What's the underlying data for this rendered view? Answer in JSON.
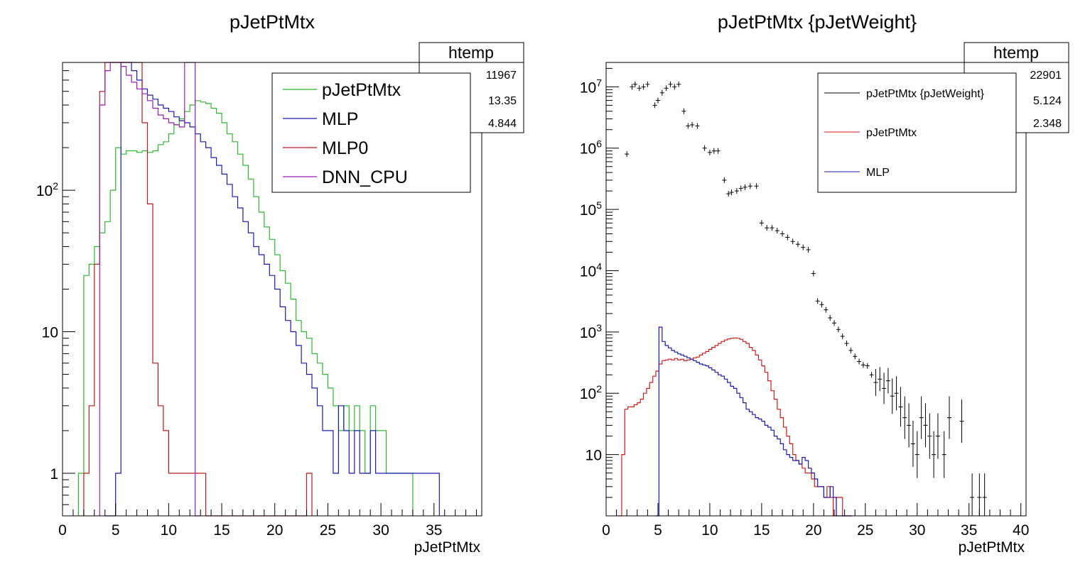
{
  "chart_data": [
    {
      "type": "histogram",
      "title": "pJetPtMtx",
      "xlabel": "pJetPtMtx",
      "ylabel": "",
      "xlim": [
        0,
        39.5
      ],
      "ylim": [
        0.5,
        800
      ],
      "log_y": true,
      "bin_width": 0.5,
      "x_ticks": [
        "0",
        "5",
        "10",
        "15",
        "20",
        "25",
        "30",
        "35"
      ],
      "y_ticks": [
        "1",
        "10",
        "10^2"
      ],
      "stats_box": {
        "title": "htemp",
        "values": [
          "11967",
          "13.35",
          "4.844"
        ]
      },
      "legend_position": "top-right",
      "series": [
        {
          "name": "pJetPtMtx",
          "color": "#2eb82e",
          "x_start": 1.5,
          "values": [
            1,
            25,
            30,
            40,
            50,
            60,
            100,
            200,
            180,
            190,
            190,
            185,
            190,
            185,
            190,
            210,
            220,
            250,
            290,
            320,
            360,
            400,
            430,
            420,
            410,
            380,
            350,
            300,
            250,
            220,
            180,
            150,
            120,
            90,
            70,
            55,
            45,
            35,
            27,
            22,
            17,
            12,
            10,
            9,
            7,
            6,
            5,
            4,
            3,
            2,
            3,
            2,
            3,
            2,
            1,
            3,
            2,
            2,
            1,
            1,
            1,
            1,
            1
          ]
        },
        {
          "name": "MLP",
          "color": "#1a1ab8",
          "x_start": 4.0,
          "values": [
            0,
            0,
            1,
            800,
            850,
            700,
            600,
            520,
            470,
            440,
            400,
            380,
            360,
            330,
            310,
            300,
            280,
            250,
            220,
            200,
            170,
            150,
            130,
            110,
            90,
            75,
            60,
            50,
            40,
            35,
            30,
            25,
            20,
            15,
            12,
            10,
            8,
            6,
            5,
            4,
            3,
            2,
            2,
            1,
            3,
            2,
            1,
            2,
            1,
            1,
            2,
            1,
            1,
            1,
            1,
            1,
            1,
            1,
            1,
            1,
            1,
            1,
            1
          ]
        },
        {
          "name": "MLP0",
          "color": "#b81a1a",
          "x_start": 2.0,
          "values": [
            1,
            3,
            30,
            500,
            800,
            800,
            800,
            800,
            800,
            800,
            800,
            300,
            80,
            6,
            3,
            2,
            1,
            1,
            1,
            1,
            1,
            1,
            1,
            0,
            0,
            0,
            0,
            0,
            0,
            0,
            0,
            0,
            0,
            0,
            0,
            0,
            0,
            0,
            0,
            0,
            0,
            0,
            1
          ]
        },
        {
          "name": "DNN_CPU",
          "color": "#9a1ab8",
          "x_start": 3.5,
          "values": [
            400,
            700,
            800,
            800,
            750,
            650,
            580,
            520,
            480,
            430,
            380,
            340,
            320,
            300,
            290,
            280,
            800,
            800,
            0
          ]
        }
      ]
    },
    {
      "type": "histogram",
      "title": "pJetPtMtx {pJetWeight}",
      "xlabel": "pJetPtMtx",
      "ylabel": "",
      "xlim": [
        0,
        40.5
      ],
      "ylim": [
        1,
        25000000
      ],
      "log_y": true,
      "bin_width": 0.3,
      "x_ticks": [
        "0",
        "5",
        "10",
        "15",
        "20",
        "25",
        "30",
        "35",
        "40"
      ],
      "y_ticks": [
        "10",
        "10^2",
        "10^3",
        "10^4",
        "10^5",
        "10^6",
        "10^7"
      ],
      "stats_box": {
        "title": "htemp",
        "values": [
          "22901",
          "5.124",
          "2.348"
        ]
      },
      "legend_position": "top-right",
      "series": [
        {
          "name": "pJetPtMtx {pJetWeight}",
          "color": "#000000",
          "style": "points",
          "points": [
            [
              2.0,
              800000
            ],
            [
              2.5,
              10000000
            ],
            [
              2.8,
              11000000
            ],
            [
              3.2,
              9500000
            ],
            [
              3.6,
              10000000
            ],
            [
              4.0,
              11000000
            ],
            [
              4.7,
              5000000
            ],
            [
              5.0,
              6000000
            ],
            [
              5.4,
              8000000
            ],
            [
              5.8,
              9500000
            ],
            [
              6.2,
              11000000
            ],
            [
              6.6,
              10000000
            ],
            [
              7.0,
              11000000
            ],
            [
              7.5,
              4000000
            ],
            [
              7.9,
              2300000
            ],
            [
              8.3,
              2400000
            ],
            [
              8.8,
              2300000
            ],
            [
              9.5,
              1000000
            ],
            [
              10.0,
              850000
            ],
            [
              10.4,
              900000
            ],
            [
              10.8,
              900000
            ],
            [
              11.4,
              300000
            ],
            [
              11.8,
              180000
            ],
            [
              12.1,
              190000
            ],
            [
              12.6,
              200000
            ],
            [
              13.0,
              220000
            ],
            [
              13.4,
              230000
            ],
            [
              13.9,
              240000
            ],
            [
              14.5,
              240000
            ],
            [
              15.0,
              60000
            ],
            [
              15.5,
              50000
            ],
            [
              16.0,
              50000
            ],
            [
              16.5,
              45000
            ],
            [
              17.0,
              40000
            ],
            [
              17.5,
              35000
            ],
            [
              18.0,
              30000
            ],
            [
              18.5,
              27000
            ],
            [
              19.0,
              24000
            ],
            [
              19.5,
              22000
            ],
            [
              20.0,
              9000
            ],
            [
              20.4,
              3200
            ],
            [
              20.8,
              2800
            ],
            [
              21.2,
              2300
            ],
            [
              21.6,
              1700
            ],
            [
              22.0,
              1400
            ],
            [
              22.4,
              1100
            ],
            [
              22.8,
              850
            ],
            [
              23.2,
              650
            ],
            [
              23.6,
              500
            ],
            [
              24.0,
              400
            ],
            [
              24.4,
              330
            ],
            [
              24.8,
              290
            ],
            [
              25.2,
              280
            ],
            [
              25.6,
              200
            ],
            [
              26.0,
              150
            ],
            [
              26.4,
              170
            ],
            [
              26.8,
              120
            ],
            [
              27.2,
              160
            ],
            [
              27.6,
              90
            ],
            [
              28.0,
              100
            ],
            [
              28.4,
              60
            ],
            [
              28.8,
              40
            ],
            [
              29.2,
              30
            ],
            [
              29.6,
              15
            ],
            [
              30.0,
              10
            ],
            [
              30.4,
              40
            ],
            [
              30.8,
              30
            ],
            [
              31.2,
              20
            ],
            [
              31.6,
              10
            ],
            [
              32.0,
              20
            ],
            [
              32.6,
              10
            ],
            [
              33.1,
              40
            ],
            [
              34.3,
              35
            ],
            [
              35.3,
              2
            ],
            [
              36.0,
              2
            ],
            [
              36.5,
              2
            ]
          ]
        },
        {
          "name": "pJetPtMtx",
          "color": "#d41c1c",
          "x_start": 1.2,
          "values": [
            1,
            10,
            55,
            60,
            60,
            65,
            70,
            80,
            100,
            120,
            150,
            190,
            230,
            300,
            340,
            350,
            360,
            350,
            370,
            350,
            360,
            340,
            350,
            360,
            380,
            390,
            420,
            450,
            480,
            520,
            560,
            600,
            650,
            700,
            740,
            770,
            790,
            800,
            790,
            760,
            700,
            650,
            560,
            500,
            420,
            350,
            280,
            220,
            160,
            110,
            80,
            55,
            40,
            28,
            20,
            15,
            10,
            8,
            7,
            6,
            5,
            5,
            4,
            3,
            3,
            3,
            2,
            3,
            2,
            1,
            2,
            2,
            1,
            1,
            1
          ]
        },
        {
          "name": "MLP",
          "color": "#1a1ab8",
          "x_start": 4.8,
          "values": [
            0,
            1200,
            700,
            600,
            550,
            500,
            470,
            440,
            420,
            400,
            380,
            360,
            340,
            320,
            300,
            290,
            280,
            260,
            240,
            220,
            200,
            190,
            170,
            150,
            130,
            120,
            100,
            85,
            70,
            55,
            50,
            45,
            40,
            38,
            35,
            30,
            28,
            25,
            20,
            18,
            15,
            12,
            10,
            9,
            8,
            8,
            7,
            9,
            8,
            6,
            5,
            4,
            3,
            3,
            2,
            2,
            3,
            2,
            1,
            1,
            1,
            1,
            1
          ]
        }
      ]
    }
  ]
}
